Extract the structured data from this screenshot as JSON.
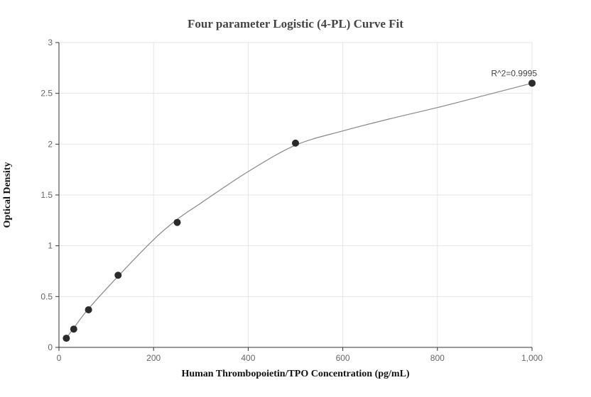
{
  "chart_data": {
    "type": "scatter",
    "title": "Four parameter Logistic (4-PL) Curve Fit",
    "xlabel": "Human Thrombopoietin/TPO Concentration (pg/mL)",
    "ylabel": "Optical Density",
    "xlim": [
      0,
      1000
    ],
    "ylim": [
      0,
      3
    ],
    "x_ticks": [
      0,
      200,
      400,
      600,
      800,
      1000
    ],
    "x_tick_labels": [
      "0",
      "200",
      "400",
      "600",
      "800",
      "1,000"
    ],
    "y_ticks": [
      0,
      0.5,
      1,
      1.5,
      2,
      2.5,
      3
    ],
    "y_tick_labels": [
      "0",
      "0.5",
      "1",
      "1.5",
      "2",
      "2.5",
      "3"
    ],
    "grid": true,
    "series": [
      {
        "x": [
          15.6,
          31.25,
          62.5,
          125,
          250,
          500,
          1000
        ],
        "y": [
          0.09,
          0.18,
          0.37,
          0.71,
          1.23,
          2.01,
          2.6
        ]
      }
    ],
    "fit_curve": {
      "x": [
        15.6,
        31.25,
        62.5,
        125,
        200,
        250,
        300,
        400,
        500,
        600,
        700,
        800,
        900,
        1000
      ],
      "y": [
        0.09,
        0.19,
        0.38,
        0.7,
        1.06,
        1.26,
        1.42,
        1.73,
        1.99,
        2.13,
        2.25,
        2.36,
        2.48,
        2.6
      ]
    },
    "annotations": [
      {
        "text": "R^2=0.9995",
        "x": 1000,
        "y": 2.6
      }
    ],
    "colors": {
      "points": "#2b2b2b",
      "curve": "#888888",
      "grid": "#e6e6e6",
      "axis": "#333333"
    }
  }
}
